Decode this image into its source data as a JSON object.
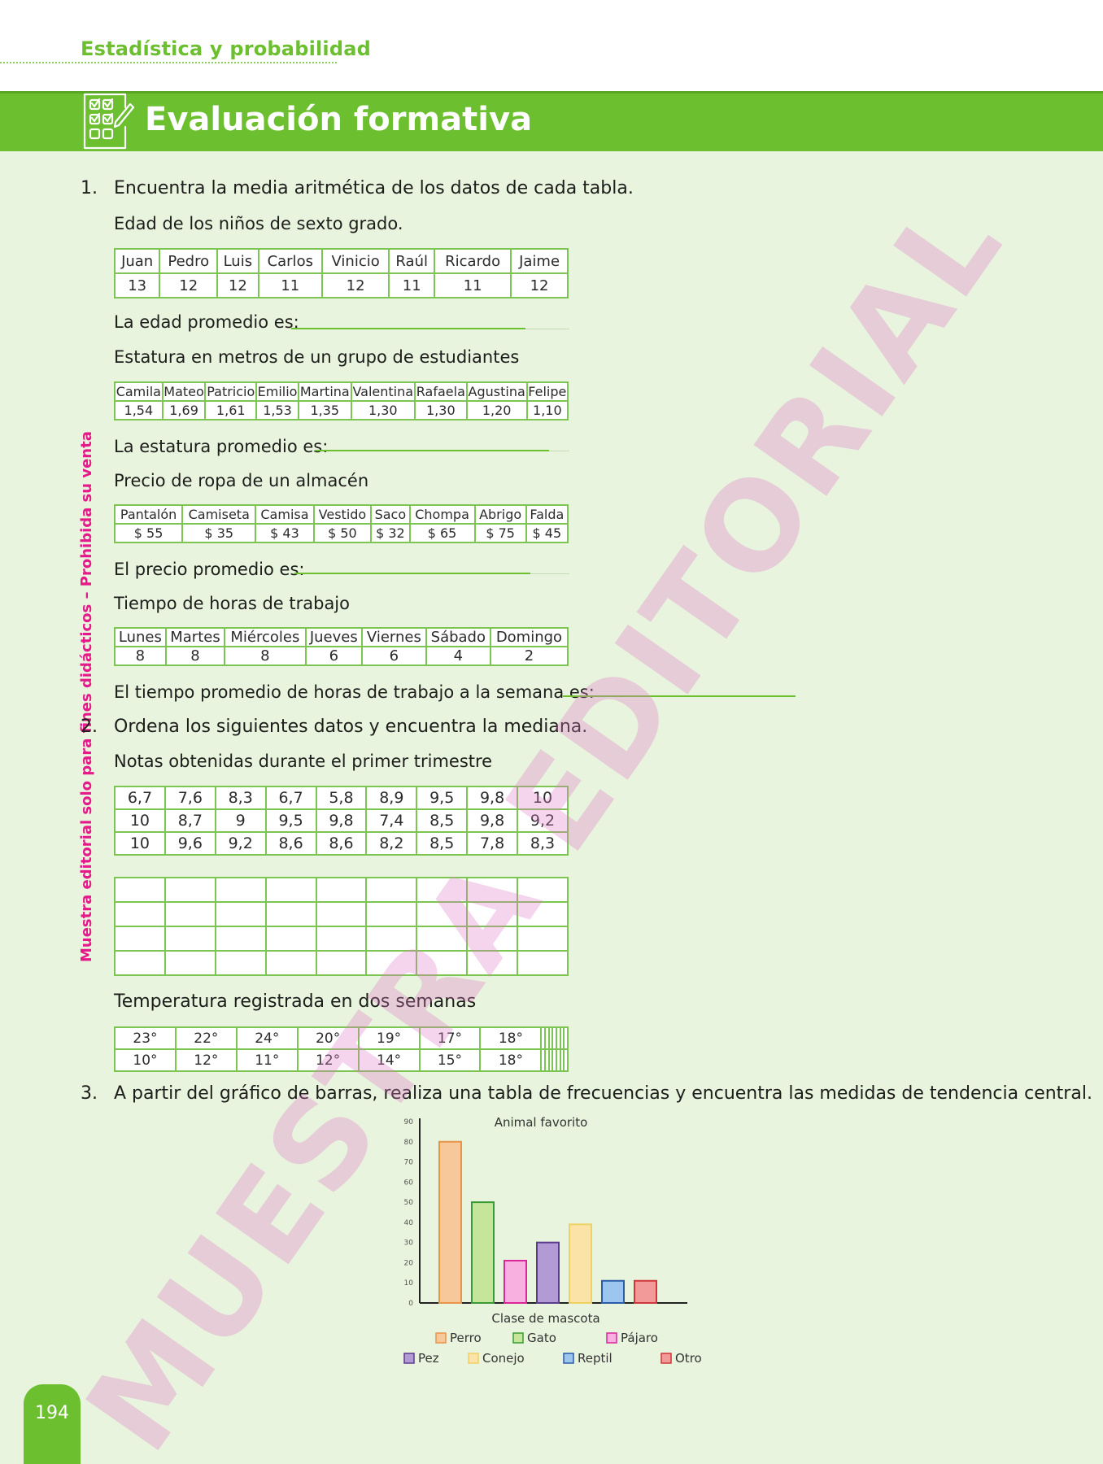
{
  "header": {
    "section": "Estadística y probabilidad",
    "title": "Evaluación formativa"
  },
  "side_note": "Muestra editorial solo para fines didácticos – Prohibida su venta",
  "watermark": "MUESTRA EDITORIAL",
  "page_number": "194",
  "q1": {
    "number": "1.",
    "prompt": "Encuentra la media aritmética de los datos de cada tabla.",
    "t1": {
      "caption": "Edad de los niños de sexto grado.",
      "headers": [
        "Juan",
        "Pedro",
        "Luis",
        "Carlos",
        "Vinicio",
        "Raúl",
        "Ricardo",
        "Jaime"
      ],
      "values": [
        "13",
        "12",
        "12",
        "11",
        "12",
        "11",
        "11",
        "12"
      ],
      "answer_label": "La edad promedio es:"
    },
    "t2": {
      "caption": "Estatura en metros de un grupo de estudiantes",
      "headers": [
        "Camila",
        "Mateo",
        "Patricio",
        "Emilio",
        "Martina",
        "Valentina",
        "Rafaela",
        "Agustina",
        "Felipe"
      ],
      "values": [
        "1,54",
        "1,69",
        "1,61",
        "1,53",
        "1,35",
        "1,30",
        "1,30",
        "1,20",
        "1,10"
      ],
      "answer_label": "La estatura promedio es:"
    },
    "t3": {
      "caption": "Precio de ropa de un almacén",
      "headers": [
        "Pantalón",
        "Camiseta",
        "Camisa",
        "Vestido",
        "Saco",
        "Chompa",
        "Abrigo",
        "Falda"
      ],
      "values": [
        "$ 55",
        "$ 35",
        "$ 43",
        "$ 50",
        "$ 32",
        "$ 65",
        "$ 75",
        "$ 45"
      ],
      "answer_label": "El precio promedio es:"
    },
    "t4": {
      "caption": "Tiempo de horas de trabajo",
      "headers": [
        "Lunes",
        "Martes",
        "Miércoles",
        "Jueves",
        "Viernes",
        "Sábado",
        "Domingo"
      ],
      "values": [
        "8",
        "8",
        "8",
        "6",
        "6",
        "4",
        "2"
      ],
      "answer_label": "El tiempo promedio de horas de trabajo a la semana es:"
    }
  },
  "q2": {
    "number": "2.",
    "prompt": "Ordena los siguientes datos y encuentra la mediana.",
    "grades": {
      "caption": "Notas obtenidas durante el primer trimestre",
      "rows": [
        [
          "6,7",
          "7,6",
          "8,3",
          "6,7",
          "5,8",
          "8,9",
          "9,5",
          "9,8",
          "10"
        ],
        [
          "10",
          "8,7",
          "9",
          "9,5",
          "9,8",
          "7,4",
          "8,5",
          "9,8",
          "9,2"
        ],
        [
          "10",
          "9,6",
          "9,2",
          "8,6",
          "8,6",
          "8,2",
          "8,5",
          "7,8",
          "8,3"
        ]
      ]
    },
    "temps": {
      "caption": "Temperatura registrada en dos semanas",
      "rows": [
        [
          "23°",
          "22°",
          "24°",
          "20°",
          "19°",
          "17°",
          "18°",
          "",
          "",
          "",
          "",
          "",
          "",
          ""
        ],
        [
          "10°",
          "12°",
          "11°",
          "12°",
          "14°",
          "15°",
          "18°",
          "",
          "",
          "",
          "",
          "",
          "",
          ""
        ]
      ]
    }
  },
  "q3": {
    "number": "3.",
    "prompt": "A partir del gráfico de barras, realiza una tabla de frecuencias y encuentra las medidas de tendencia central."
  },
  "chart_data": {
    "type": "bar",
    "title": "Animal favorito",
    "xlabel": "Clase de mascota",
    "ylabel": "",
    "ylim": [
      0,
      90
    ],
    "yticks": [
      "0",
      "10",
      "20",
      "30",
      "40",
      "50",
      "60",
      "70",
      "80",
      "90"
    ],
    "categories": [
      "Perro",
      "Gato",
      "Pájaro",
      "Pez",
      "Conejo",
      "Reptil",
      "Otro"
    ],
    "values": [
      80,
      50,
      21,
      30,
      39,
      11,
      11
    ],
    "colors": [
      "#f7c99a",
      "#c5e59a",
      "#f7b0df",
      "#b29bd4",
      "#fbe3a8",
      "#9cc6ee",
      "#f29a9a"
    ],
    "edge_colors": [
      "#e8954a",
      "#3a9b35",
      "#d9279a",
      "#5c3b8f",
      "#efd064",
      "#2a5ca8",
      "#d0363a"
    ],
    "legend_position": "bottom"
  }
}
